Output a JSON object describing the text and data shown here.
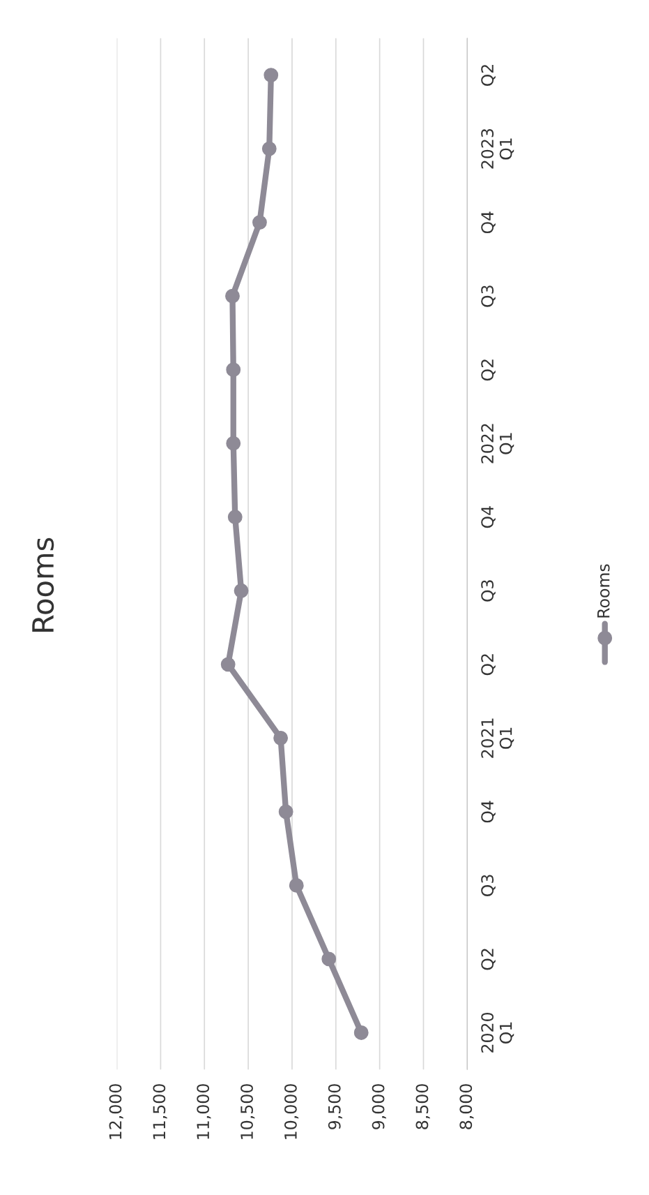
{
  "chart_data": {
    "type": "line",
    "title": "Rooms",
    "orientation": "horizontal",
    "categories": [
      "Q2",
      "2023\nQ1",
      "Q4",
      "Q3",
      "Q2",
      "2022\nQ1",
      "Q4",
      "Q3",
      "Q2",
      "2021\nQ1",
      "Q4",
      "Q3",
      "Q2",
      "2020\nQ1"
    ],
    "series": [
      {
        "name": "Rooms",
        "color": "#8e8a96",
        "values": [
          10240,
          10260,
          10370,
          10680,
          10670,
          10670,
          10650,
          10580,
          10730,
          10130,
          10070,
          9950,
          9580,
          9210
        ]
      }
    ],
    "xlim": [
      12000,
      8000
    ],
    "xticks": [
      {
        "value": 12000,
        "label": "12,000"
      },
      {
        "value": 11500,
        "label": "11,500"
      },
      {
        "value": 11000,
        "label": "11,000"
      },
      {
        "value": 10500,
        "label": "10,500"
      },
      {
        "value": 10000,
        "label": "10,000"
      },
      {
        "value": 9500,
        "label": "9,500"
      },
      {
        "value": 9000,
        "label": "9,000"
      },
      {
        "value": 8500,
        "label": "8,500"
      },
      {
        "value": 8000,
        "label": "8,000"
      }
    ],
    "grid": "x",
    "legend": "right",
    "marker": "circle",
    "line_style": "solid"
  }
}
